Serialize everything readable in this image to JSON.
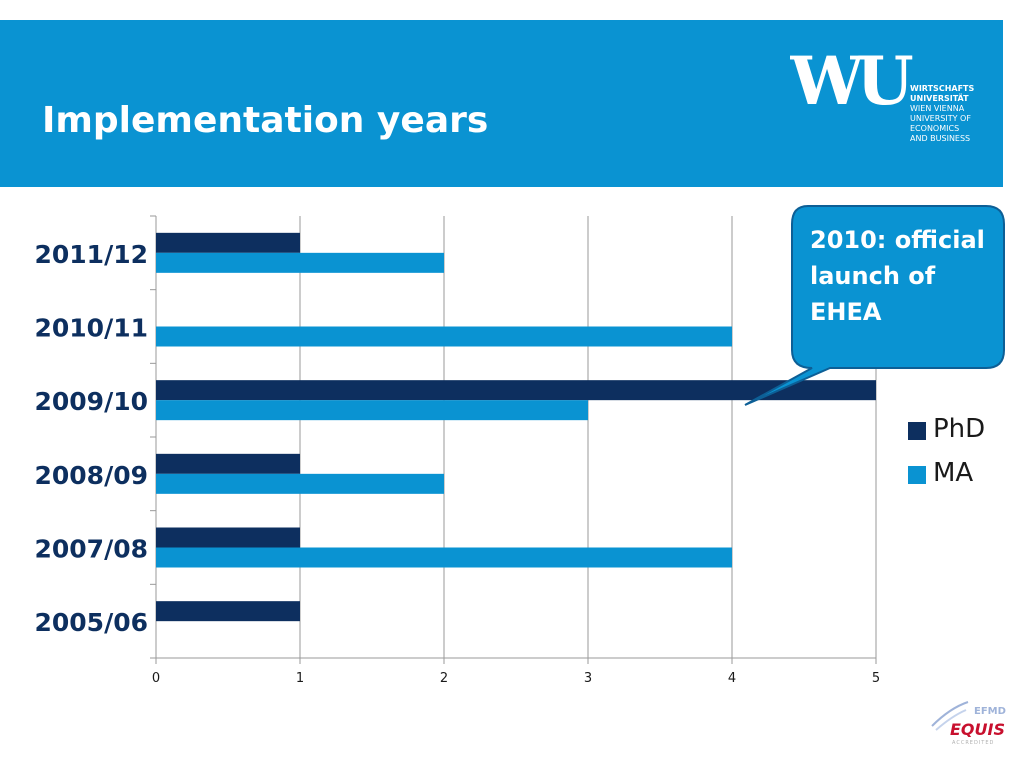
{
  "slide": {
    "title": "Implementation years"
  },
  "logo": {
    "mark": "WU",
    "lines": [
      "WIRTSCHAFTS",
      "UNIVERSITÄT",
      "WIEN VIENNA",
      "UNIVERSITY OF",
      "ECONOMICS",
      "AND BUSINESS"
    ]
  },
  "callout": {
    "text": "2010: official launch of EHEA"
  },
  "accreditation": {
    "top": "EFMD",
    "main": "EQUIS",
    "sub": "ACCREDITED"
  },
  "colors": {
    "header": "#0a93d2",
    "phd": "#0d2f5f",
    "ma": "#0a93d2"
  },
  "chart_data": {
    "type": "bar",
    "orientation": "horizontal",
    "categories": [
      "2011/12",
      "2010/11",
      "2009/10",
      "2008/09",
      "2007/08",
      "2005/06"
    ],
    "series": [
      {
        "name": "PhD",
        "values": [
          1,
          0,
          5,
          1,
          1,
          1
        ]
      },
      {
        "name": "MA",
        "values": [
          2,
          4,
          3,
          2,
          4,
          0
        ]
      }
    ],
    "xlim": [
      0,
      5
    ],
    "xticks": [
      "0",
      "1",
      "2",
      "3",
      "4",
      "5"
    ],
    "grid": true,
    "legend": "right"
  }
}
